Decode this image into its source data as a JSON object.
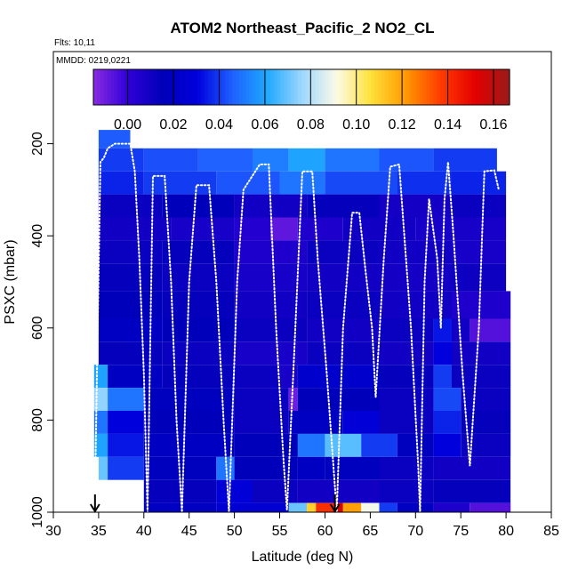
{
  "chart_data": {
    "type": "heatmap",
    "title": "ATOM2 Northeast_Pacific_2 NO2_CL",
    "flights_text": "Flts: 10,11",
    "date_text": "MMDD: 0219,0221",
    "xlabel": "Latitude (deg N)",
    "ylabel": "PSXC (mbar)",
    "xlim": [
      30,
      85
    ],
    "ylim": [
      1000,
      0
    ],
    "x_ticks": [
      "30",
      "35",
      "40",
      "45",
      "50",
      "55",
      "60",
      "65",
      "70",
      "75",
      "80",
      "85"
    ],
    "y_ticks": [
      "200",
      "400",
      "600",
      "800",
      "1000"
    ],
    "colorbar": {
      "range": [
        -0.015,
        0.167
      ],
      "tick_values": [
        0.0,
        0.02,
        0.04,
        0.06,
        0.08,
        0.1,
        0.12,
        0.14,
        0.16
      ],
      "tick_labels": [
        "0.00",
        "0.02",
        "0.04",
        "0.06",
        "0.08",
        "0.10",
        "0.12",
        "0.14",
        "0.16"
      ],
      "colors": [
        "#8a2be2",
        "#2f00d8",
        "#0000b8",
        "#0000dd",
        "#1f60ff",
        "#1ea8ff",
        "#9bd6ff",
        "#fbfbe8",
        "#ffe13a",
        "#ff9a00",
        "#ff3c00",
        "#e40000",
        "#9a1a1a"
      ]
    },
    "pressure_bands": [
      {
        "p_top": 170,
        "p_bottom": 210,
        "cells": [
          [
            35,
            38.5,
            0.045
          ]
        ]
      },
      {
        "p_top": 210,
        "p_bottom": 260,
        "cells": [
          [
            35,
            40,
            0.04
          ],
          [
            40,
            46,
            0.043
          ],
          [
            46,
            52,
            0.046
          ],
          [
            52,
            56,
            0.052
          ],
          [
            56,
            60,
            0.06
          ],
          [
            60,
            66,
            0.05
          ],
          [
            66,
            72,
            0.044
          ],
          [
            72,
            79,
            0.04
          ]
        ]
      },
      {
        "p_top": 260,
        "p_bottom": 310,
        "cells": [
          [
            35,
            40,
            0.036
          ],
          [
            40,
            48,
            0.04
          ],
          [
            48,
            55,
            0.044
          ],
          [
            55,
            60,
            0.05
          ],
          [
            60,
            68,
            0.042
          ],
          [
            68,
            74,
            0.038
          ],
          [
            74,
            80,
            0.036
          ]
        ]
      },
      {
        "p_top": 310,
        "p_bottom": 360,
        "cells": [
          [
            35,
            42,
            0.012
          ],
          [
            42,
            50,
            0.016
          ],
          [
            50,
            58,
            0.01
          ],
          [
            58,
            66,
            0.014
          ],
          [
            66,
            74,
            0.009
          ],
          [
            74,
            80,
            0.012
          ]
        ]
      },
      {
        "p_top": 360,
        "p_bottom": 410,
        "cells": [
          [
            35,
            43,
            0.01
          ],
          [
            43,
            50,
            0.008
          ],
          [
            50,
            54,
            0.004
          ],
          [
            54,
            57,
            -0.008
          ],
          [
            57,
            62,
            0.006
          ],
          [
            62,
            70,
            0.01
          ],
          [
            70,
            80,
            0.008
          ]
        ]
      },
      {
        "p_top": 410,
        "p_bottom": 460,
        "cells": [
          [
            35,
            42,
            0.012
          ],
          [
            42,
            50,
            0.014
          ],
          [
            50,
            58,
            0.006
          ],
          [
            58,
            66,
            0.012
          ],
          [
            66,
            74,
            0.01
          ],
          [
            74,
            80,
            0.008
          ]
        ]
      },
      {
        "p_top": 460,
        "p_bottom": 520,
        "cells": [
          [
            35,
            42,
            0.014
          ],
          [
            42,
            50,
            0.012
          ],
          [
            50,
            58,
            0.008
          ],
          [
            58,
            66,
            0.01
          ],
          [
            66,
            74,
            0.009
          ],
          [
            74,
            80,
            0.011
          ]
        ]
      },
      {
        "p_top": 520,
        "p_bottom": 580,
        "cells": [
          [
            35,
            42,
            0.016
          ],
          [
            42,
            50,
            0.014
          ],
          [
            50,
            58,
            0.01
          ],
          [
            58,
            66,
            0.012
          ],
          [
            66,
            74,
            0.01
          ],
          [
            74,
            80.5,
            0.006
          ]
        ]
      },
      {
        "p_top": 580,
        "p_bottom": 630,
        "cells": [
          [
            35,
            42,
            0.02
          ],
          [
            42,
            50,
            0.016
          ],
          [
            50,
            58,
            0.012
          ],
          [
            58,
            66,
            0.01
          ],
          [
            66,
            72,
            0.012
          ],
          [
            72,
            74,
            0.034
          ],
          [
            74,
            76,
            0.01
          ],
          [
            76,
            80.5,
            -0.006
          ]
        ]
      },
      {
        "p_top": 630,
        "p_bottom": 680,
        "cells": [
          [
            35,
            42,
            0.014
          ],
          [
            42,
            50,
            0.012
          ],
          [
            50,
            58,
            0.008
          ],
          [
            58,
            66,
            0.012
          ],
          [
            66,
            72,
            0.01
          ],
          [
            72,
            74,
            0.03
          ],
          [
            74,
            80.5,
            0.01
          ]
        ]
      },
      {
        "p_top": 680,
        "p_bottom": 730,
        "cells": [
          [
            34.5,
            36,
            0.06
          ],
          [
            36,
            42,
            0.02
          ],
          [
            42,
            50,
            0.014
          ],
          [
            50,
            55,
            0.012
          ],
          [
            55,
            57,
            0.008
          ],
          [
            57,
            66,
            0.024
          ],
          [
            66,
            72,
            0.014
          ],
          [
            72,
            74,
            0.04
          ],
          [
            74,
            80.5,
            0.012
          ]
        ]
      },
      {
        "p_top": 730,
        "p_bottom": 780,
        "cells": [
          [
            34.5,
            36,
            0.075
          ],
          [
            36,
            40,
            0.05
          ],
          [
            40,
            50,
            0.018
          ],
          [
            50,
            56,
            0.012
          ],
          [
            56,
            57,
            -0.01
          ],
          [
            57,
            66,
            0.016
          ],
          [
            66,
            72,
            0.012
          ],
          [
            72,
            75,
            0.042
          ],
          [
            75,
            80.5,
            0.012
          ]
        ]
      },
      {
        "p_top": 780,
        "p_bottom": 830,
        "cells": [
          [
            34.5,
            36,
            0.05
          ],
          [
            36,
            40,
            0.03
          ],
          [
            40,
            50,
            0.016
          ],
          [
            50,
            56,
            0.012
          ],
          [
            56,
            62,
            0.02
          ],
          [
            62,
            66,
            0.028
          ],
          [
            66,
            72,
            0.012
          ],
          [
            72,
            75,
            0.036
          ],
          [
            75,
            80.5,
            0.014
          ]
        ]
      },
      {
        "p_top": 830,
        "p_bottom": 880,
        "cells": [
          [
            34.5,
            36,
            0.06
          ],
          [
            36,
            40,
            0.034
          ],
          [
            40,
            50,
            0.02
          ],
          [
            50,
            57,
            0.016
          ],
          [
            57,
            60,
            0.05
          ],
          [
            60,
            64,
            0.068
          ],
          [
            64,
            68,
            0.04
          ],
          [
            68,
            72,
            0.018
          ],
          [
            72,
            75,
            0.03
          ],
          [
            75,
            80.5,
            0.012
          ]
        ]
      },
      {
        "p_top": 880,
        "p_bottom": 930,
        "cells": [
          [
            35,
            36,
            0.07
          ],
          [
            36,
            40,
            0.04
          ],
          [
            40,
            48,
            0.018
          ],
          [
            48,
            50,
            0.05
          ],
          [
            50,
            57,
            0.016
          ],
          [
            57,
            60,
            0.02
          ],
          [
            60,
            66,
            0.018
          ],
          [
            66,
            72,
            0.012
          ],
          [
            72,
            80.5,
            0.01
          ]
        ]
      },
      {
        "p_top": 930,
        "p_bottom": 980,
        "cells": [
          [
            40,
            48,
            0.014
          ],
          [
            48,
            52,
            0.028
          ],
          [
            52,
            57,
            0.012
          ],
          [
            57,
            66,
            0.01
          ],
          [
            66,
            72,
            0.012
          ],
          [
            72,
            80.5,
            0.014
          ]
        ]
      },
      {
        "p_top": 980,
        "p_bottom": 1000,
        "cells": [
          [
            40,
            48,
            0.02
          ],
          [
            48,
            56,
            0.026
          ],
          [
            56,
            58,
            0.07
          ],
          [
            58,
            59,
            0.11
          ],
          [
            59,
            61,
            0.14
          ],
          [
            61,
            62,
            0.155
          ],
          [
            62,
            64,
            0.12
          ],
          [
            64,
            66,
            0.09
          ],
          [
            66,
            68,
            0.04
          ],
          [
            68,
            72,
            0.02
          ],
          [
            72,
            76,
            0.006
          ],
          [
            76,
            80.5,
            -0.006
          ]
        ]
      }
    ],
    "flight_track": [
      [
        34.6,
        960
      ],
      [
        35.2,
        240
      ],
      [
        35.6,
        230
      ],
      [
        36,
        210
      ],
      [
        36.8,
        200
      ],
      [
        38.5,
        200
      ],
      [
        39,
        260
      ],
      [
        39.5,
        450
      ],
      [
        40,
        700
      ],
      [
        40.4,
        1000
      ],
      [
        41,
        270
      ],
      [
        42.3,
        270
      ],
      [
        43,
        500
      ],
      [
        43.6,
        800
      ],
      [
        44.2,
        1000
      ],
      [
        45,
        500
      ],
      [
        45.8,
        290
      ],
      [
        47.2,
        290
      ],
      [
        48,
        500
      ],
      [
        48.8,
        800
      ],
      [
        49.4,
        1000
      ],
      [
        50.3,
        500
      ],
      [
        51,
        300
      ],
      [
        52.8,
        245
      ],
      [
        53.8,
        245
      ],
      [
        54.6,
        600
      ],
      [
        55.4,
        880
      ],
      [
        55.8,
        995
      ],
      [
        56.5,
        700
      ],
      [
        57.5,
        260
      ],
      [
        58.6,
        260
      ],
      [
        59.2,
        450
      ],
      [
        60.2,
        700
      ],
      [
        61.3,
        1000
      ],
      [
        62,
        600
      ],
      [
        63,
        350
      ],
      [
        63.8,
        350
      ],
      [
        64.5,
        480
      ],
      [
        65.2,
        600
      ],
      [
        65.6,
        750
      ],
      [
        66.5,
        450
      ],
      [
        67.2,
        250
      ],
      [
        68.2,
        245
      ],
      [
        69.5,
        600
      ],
      [
        70.3,
        900
      ],
      [
        70.5,
        1000
      ],
      [
        71,
        500
      ],
      [
        71.5,
        320
      ],
      [
        72.4,
        450
      ],
      [
        72.8,
        600
      ],
      [
        73.2,
        320
      ],
      [
        73.6,
        240
      ],
      [
        74.2,
        400
      ],
      [
        75.2,
        700
      ],
      [
        76,
        900
      ],
      [
        77,
        600
      ],
      [
        77.6,
        260
      ],
      [
        78.7,
        258
      ],
      [
        79.2,
        300
      ]
    ],
    "arrows": [
      34.6,
      61.1
    ]
  }
}
